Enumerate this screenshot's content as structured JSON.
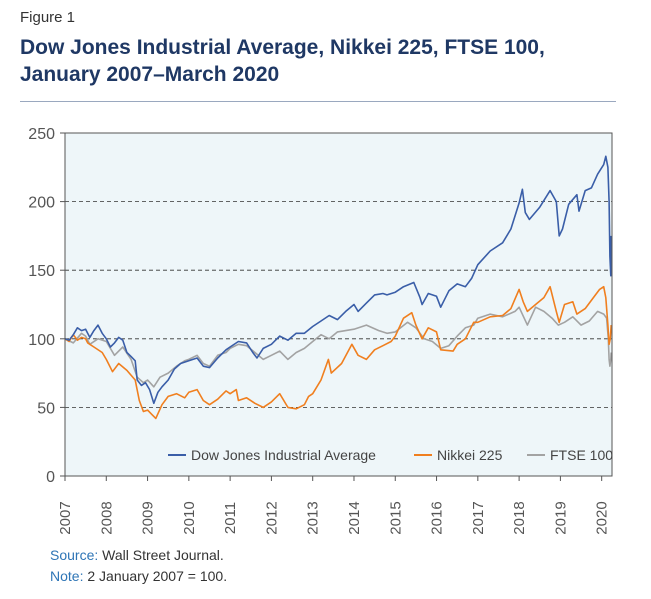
{
  "figure": {
    "label": "Figure 1",
    "title_line1": "Dow Jones Industrial Average, Nikkei 225, FTSE 100,",
    "title_line2": "January 2007–March 2020"
  },
  "notes": {
    "source_label": "Source:",
    "source_text": " Wall Street Journal.",
    "note_label": "Note:",
    "note_text": " 2 January 2007 = 100."
  },
  "colors": {
    "dow": "#3a5ea8",
    "nikkei": "#f07f1f",
    "ftse": "#a3a3a3",
    "plot_background": "#eef6f9",
    "title": "#1f3864",
    "note_key": "#2e75b6"
  },
  "chart_data": {
    "type": "line",
    "title": "Dow Jones Industrial Average, Nikkei 225, FTSE 100, January 2007–March 2020",
    "xlabel": "",
    "ylabel": "",
    "xlim": [
      2007,
      2020.25
    ],
    "ylim": [
      0,
      250
    ],
    "x_ticks": [
      "2007",
      "2008",
      "2009",
      "2010",
      "2011",
      "2012",
      "2013",
      "2014",
      "2015",
      "2016",
      "2017",
      "2018",
      "2019",
      "2020"
    ],
    "y_ticks": [
      "0",
      "50",
      "100",
      "150",
      "200",
      "250"
    ],
    "grid": "horizontal dashed at 50, 100, 150, 200",
    "legend_position": "bottom-right",
    "series": [
      {
        "name": "Dow Jones Industrial Average",
        "x": [
          2007.0,
          2007.1,
          2007.2,
          2007.3,
          2007.4,
          2007.5,
          2007.6,
          2007.7,
          2007.8,
          2007.9,
          2008.0,
          2008.1,
          2008.2,
          2008.3,
          2008.4,
          2008.5,
          2008.6,
          2008.7,
          2008.75,
          2008.85,
          2008.95,
          2009.05,
          2009.15,
          2009.25,
          2009.35,
          2009.5,
          2009.65,
          2009.8,
          2010.0,
          2010.2,
          2010.35,
          2010.5,
          2010.7,
          2010.9,
          2011.0,
          2011.2,
          2011.4,
          2011.55,
          2011.65,
          2011.8,
          2012.0,
          2012.2,
          2012.4,
          2012.6,
          2012.8,
          2013.0,
          2013.2,
          2013.4,
          2013.6,
          2013.8,
          2014.0,
          2014.1,
          2014.3,
          2014.5,
          2014.7,
          2014.8,
          2015.0,
          2015.2,
          2015.45,
          2015.6,
          2015.65,
          2015.8,
          2016.0,
          2016.1,
          2016.3,
          2016.5,
          2016.7,
          2016.85,
          2017.0,
          2017.3,
          2017.6,
          2017.8,
          2018.0,
          2018.08,
          2018.15,
          2018.25,
          2018.5,
          2018.75,
          2018.9,
          2018.97,
          2019.05,
          2019.2,
          2019.4,
          2019.45,
          2019.6,
          2019.75,
          2019.9,
          2020.05,
          2020.1,
          2020.15,
          2020.18,
          2020.2,
          2020.22,
          2020.23
        ],
        "values": [
          100,
          99,
          103,
          108,
          106,
          107,
          101,
          106,
          110,
          104,
          100,
          94,
          97,
          101,
          99,
          90,
          87,
          84,
          70,
          66,
          68,
          63,
          53,
          61,
          65,
          70,
          78,
          82,
          84,
          86,
          80,
          79,
          86,
          92,
          94,
          98,
          97,
          90,
          86,
          93,
          96,
          102,
          99,
          104,
          104,
          109,
          113,
          117,
          114,
          120,
          125,
          120,
          126,
          132,
          133,
          132,
          134,
          138,
          141,
          130,
          125,
          133,
          131,
          123,
          135,
          140,
          138,
          144,
          154,
          164,
          170,
          180,
          199,
          209,
          192,
          187,
          196,
          208,
          200,
          175,
          180,
          198,
          205,
          193,
          208,
          210,
          220,
          227,
          233,
          225,
          200,
          160,
          146,
          175
        ]
      },
      {
        "name": "Nikkei 225",
        "x": [
          2007.0,
          2007.1,
          2007.2,
          2007.3,
          2007.4,
          2007.5,
          2007.55,
          2007.7,
          2007.9,
          2008.0,
          2008.15,
          2008.3,
          2008.5,
          2008.7,
          2008.8,
          2008.9,
          2009.0,
          2009.1,
          2009.2,
          2009.35,
          2009.5,
          2009.7,
          2009.9,
          2010.0,
          2010.2,
          2010.35,
          2010.5,
          2010.7,
          2010.9,
          2011.0,
          2011.15,
          2011.2,
          2011.4,
          2011.6,
          2011.8,
          2012.0,
          2012.2,
          2012.4,
          2012.6,
          2012.8,
          2012.9,
          2013.0,
          2013.2,
          2013.38,
          2013.45,
          2013.7,
          2013.95,
          2014.1,
          2014.3,
          2014.5,
          2014.7,
          2014.9,
          2015.0,
          2015.2,
          2015.4,
          2015.5,
          2015.65,
          2015.8,
          2016.0,
          2016.1,
          2016.4,
          2016.5,
          2016.7,
          2016.9,
          2017.0,
          2017.3,
          2017.6,
          2017.8,
          2018.0,
          2018.1,
          2018.2,
          2018.4,
          2018.6,
          2018.75,
          2018.9,
          2018.97,
          2019.1,
          2019.3,
          2019.4,
          2019.6,
          2019.8,
          2019.95,
          2020.05,
          2020.1,
          2020.15,
          2020.18,
          2020.21,
          2020.23
        ],
        "values": [
          100,
          98,
          103,
          99,
          101,
          100,
          97,
          94,
          90,
          85,
          76,
          82,
          77,
          70,
          55,
          47,
          48,
          45,
          42,
          52,
          58,
          60,
          57,
          61,
          63,
          55,
          52,
          56,
          62,
          60,
          63,
          55,
          57,
          53,
          50,
          54,
          60,
          50,
          49,
          52,
          58,
          60,
          70,
          85,
          75,
          82,
          96,
          88,
          85,
          92,
          95,
          98,
          102,
          115,
          119,
          110,
          100,
          108,
          105,
          92,
          91,
          96,
          100,
          112,
          112,
          116,
          117,
          122,
          136,
          127,
          120,
          125,
          130,
          138,
          120,
          112,
          125,
          127,
          118,
          122,
          130,
          136,
          138,
          130,
          110,
          96,
          100,
          110
        ]
      },
      {
        "name": "FTSE 100",
        "x": [
          2007.0,
          2007.2,
          2007.4,
          2007.5,
          2007.6,
          2007.8,
          2008.0,
          2008.2,
          2008.4,
          2008.6,
          2008.75,
          2008.9,
          2009.0,
          2009.15,
          2009.3,
          2009.5,
          2009.7,
          2009.9,
          2010.0,
          2010.2,
          2010.35,
          2010.5,
          2010.7,
          2010.9,
          2011.0,
          2011.2,
          2011.4,
          2011.6,
          2011.8,
          2012.0,
          2012.2,
          2012.4,
          2012.6,
          2012.8,
          2013.0,
          2013.2,
          2013.4,
          2013.6,
          2013.8,
          2014.0,
          2014.3,
          2014.6,
          2014.8,
          2015.0,
          2015.3,
          2015.5,
          2015.7,
          2015.9,
          2016.1,
          2016.3,
          2016.5,
          2016.7,
          2016.9,
          2017.0,
          2017.3,
          2017.6,
          2017.9,
          2018.0,
          2018.2,
          2018.4,
          2018.6,
          2018.8,
          2018.95,
          2019.1,
          2019.3,
          2019.5,
          2019.7,
          2019.9,
          2020.05,
          2020.12,
          2020.16,
          2020.18,
          2020.2,
          2020.22,
          2020.23
        ],
        "values": [
          100,
          97,
          104,
          102,
          96,
          100,
          98,
          88,
          94,
          85,
          72,
          68,
          70,
          65,
          72,
          75,
          80,
          84,
          85,
          88,
          82,
          80,
          88,
          90,
          93,
          96,
          95,
          90,
          85,
          88,
          91,
          85,
          90,
          93,
          98,
          103,
          100,
          105,
          106,
          107,
          110,
          106,
          104,
          105,
          112,
          108,
          100,
          98,
          93,
          95,
          102,
          108,
          110,
          115,
          118,
          116,
          120,
          123,
          110,
          123,
          120,
          115,
          110,
          112,
          116,
          110,
          113,
          120,
          118,
          115,
          100,
          85,
          80,
          85,
          90
        ]
      }
    ]
  }
}
